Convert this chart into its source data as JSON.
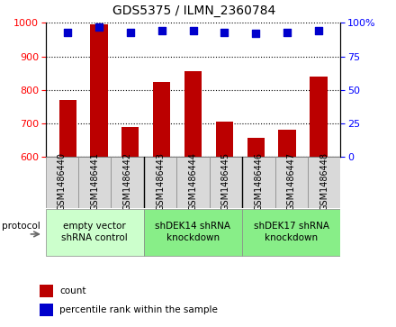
{
  "title": "GDS5375 / ILMN_2360784",
  "samples": [
    "GSM1486440",
    "GSM1486441",
    "GSM1486442",
    "GSM1486443",
    "GSM1486444",
    "GSM1486445",
    "GSM1486446",
    "GSM1486447",
    "GSM1486448"
  ],
  "counts": [
    770,
    995,
    690,
    825,
    855,
    705,
    658,
    680,
    840
  ],
  "percentile_ranks": [
    93,
    97,
    93,
    94,
    94,
    93,
    92,
    93,
    94
  ],
  "ylim_left": [
    600,
    1000
  ],
  "ylim_right": [
    0,
    100
  ],
  "yticks_left": [
    600,
    700,
    800,
    900,
    1000
  ],
  "yticks_right": [
    0,
    25,
    50,
    75,
    100
  ],
  "bar_color": "#bb0000",
  "dot_color": "#0000cc",
  "groups": [
    {
      "label": "empty vector\nshRNA control",
      "start": 0,
      "end": 3,
      "color": "#ccffcc"
    },
    {
      "label": "shDEK14 shRNA\nknockdown",
      "start": 3,
      "end": 6,
      "color": "#88ee88"
    },
    {
      "label": "shDEK17 shRNA\nknockdown",
      "start": 6,
      "end": 9,
      "color": "#88ee88"
    }
  ],
  "protocol_label": "protocol",
  "legend_count": "count",
  "legend_percentile": "percentile rank within the sample",
  "bar_width": 0.55,
  "dot_size": 35,
  "tick_label_fontsize": 7,
  "title_fontsize": 10,
  "group_label_fontsize": 7.5
}
